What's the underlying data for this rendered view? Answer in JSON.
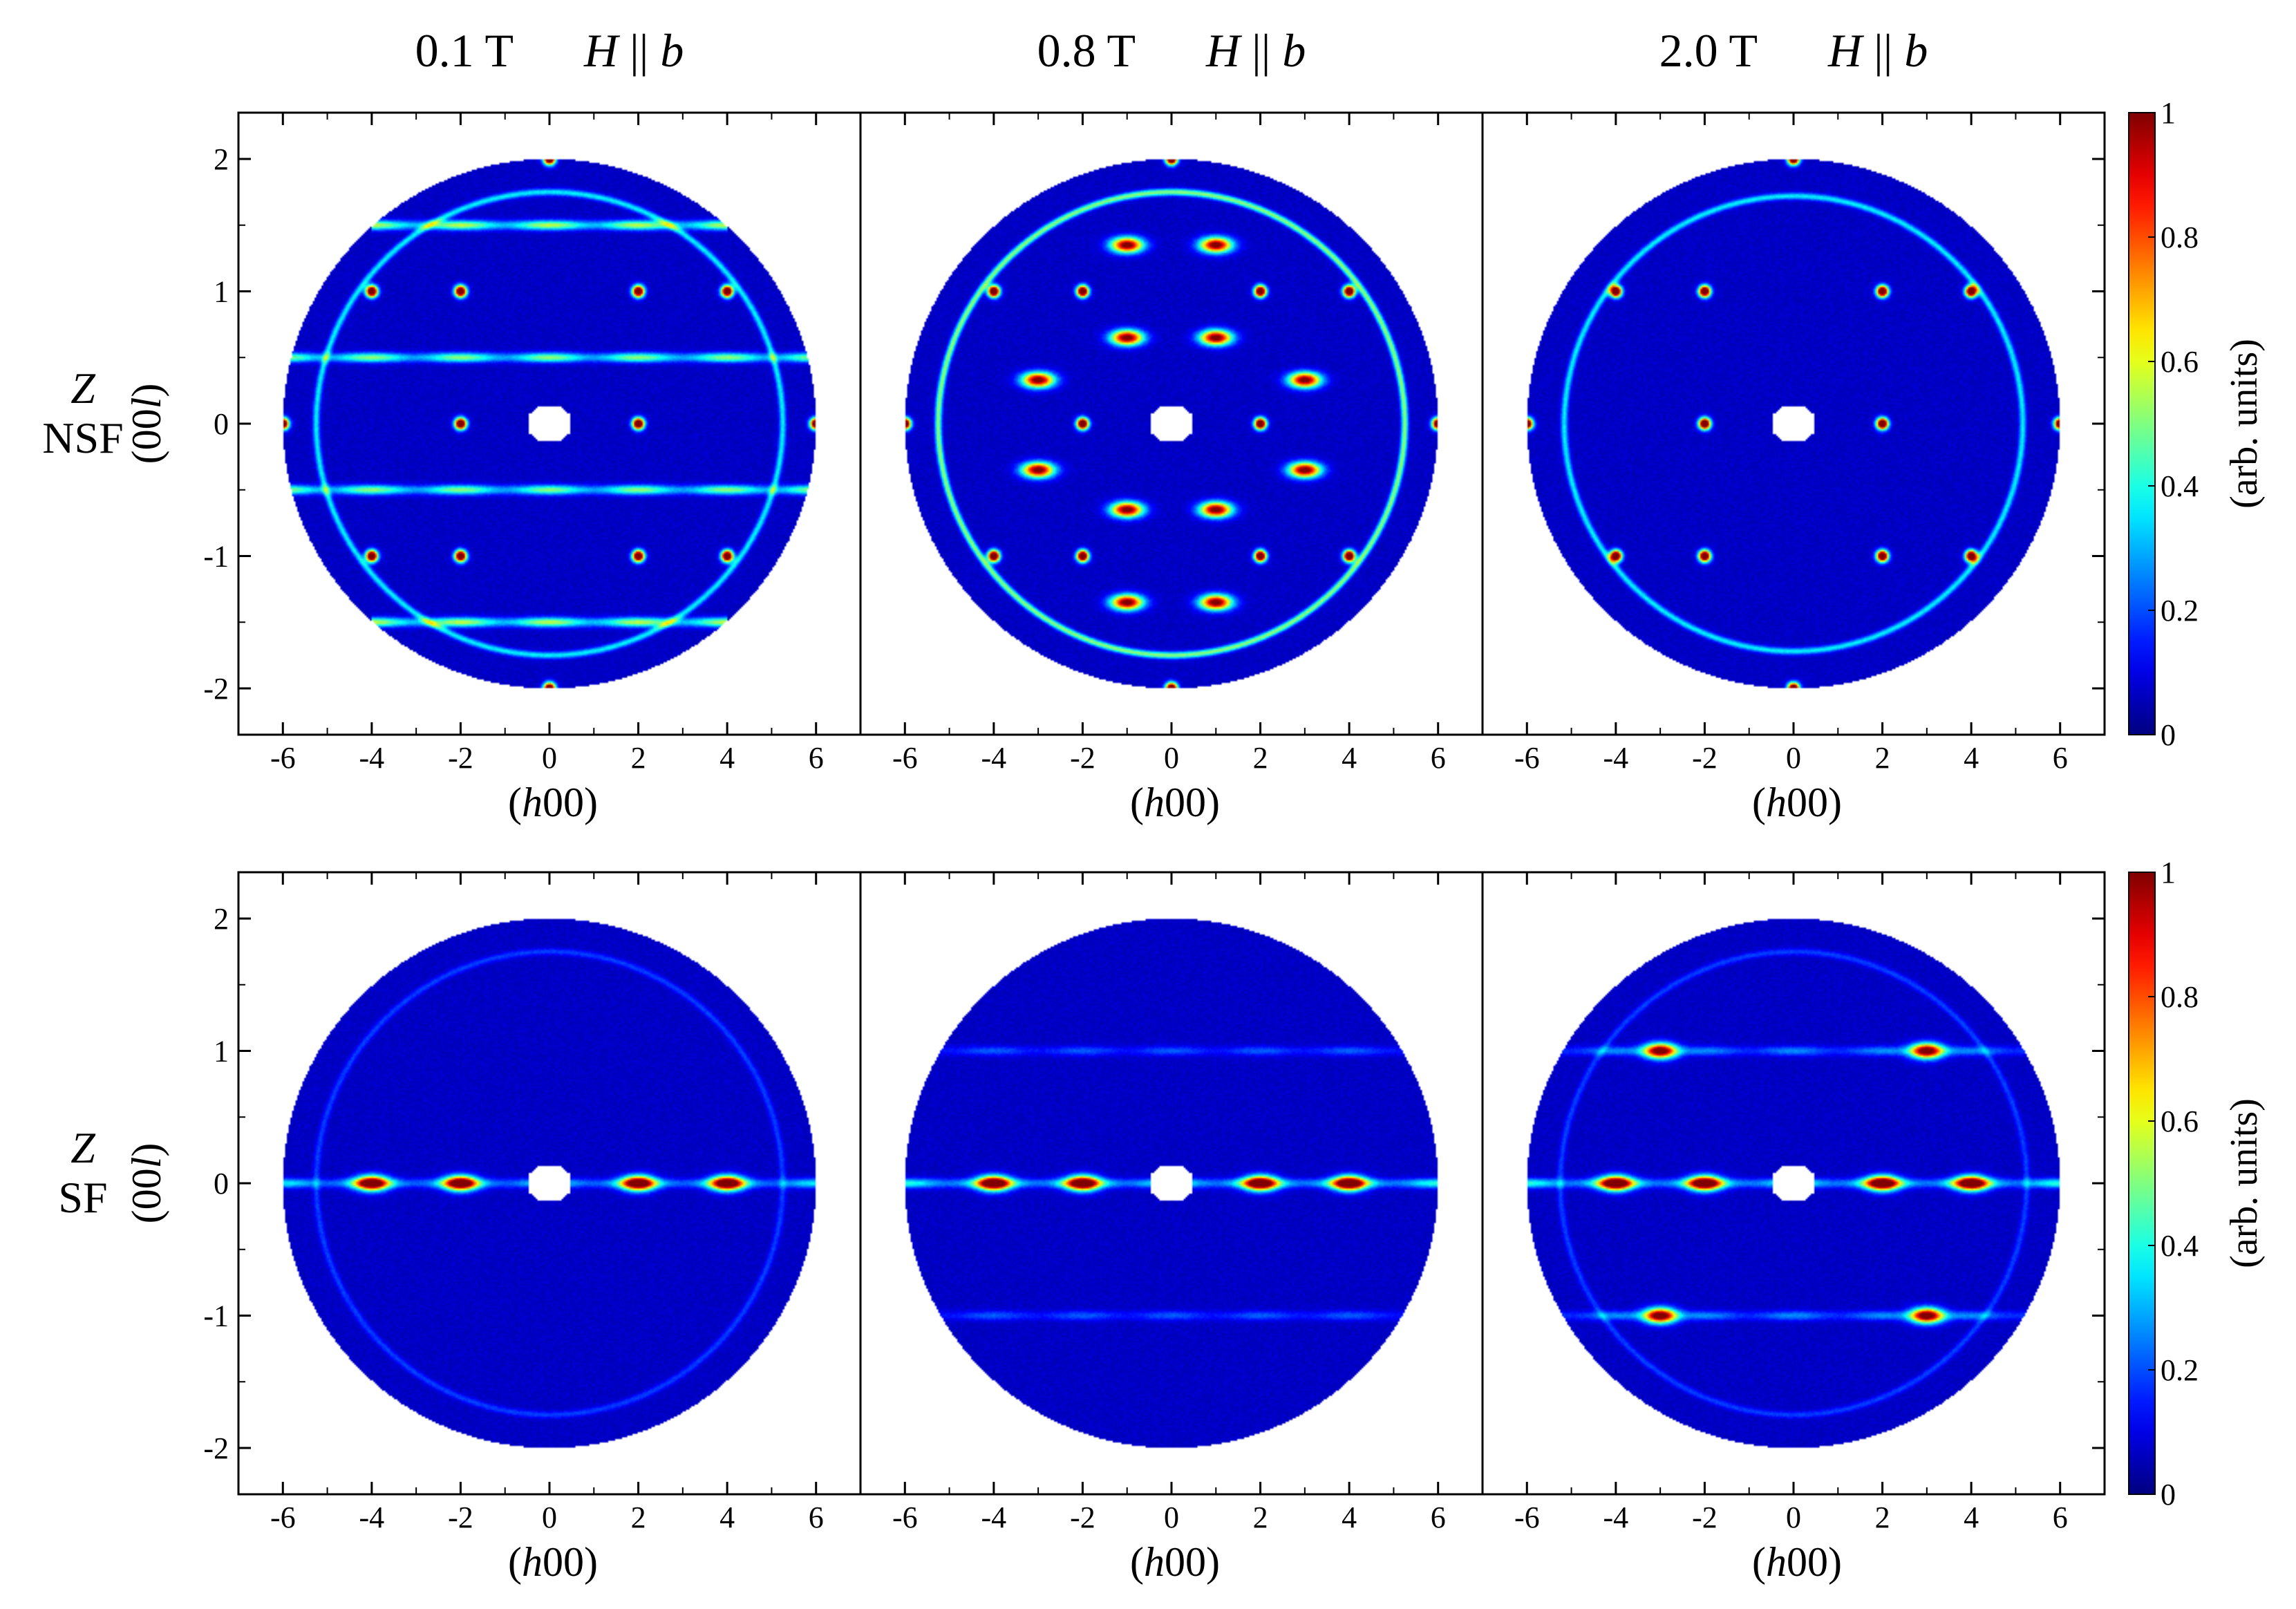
{
  "column_titles": [
    {
      "field": "0.1 T",
      "label": "H || b"
    },
    {
      "field": "0.8 T",
      "label": "H || b"
    },
    {
      "field": "2.0 T",
      "label": "H || b"
    }
  ],
  "row_labels": [
    {
      "line1": "Z",
      "line2": "NSF"
    },
    {
      "line1": "Z",
      "line2": "SF"
    }
  ],
  "x_axis_title": "(h00)",
  "y_axis_title": "(00l)",
  "colorbar": {
    "title": "(arb. units)",
    "ticks": [
      "0",
      "0.2",
      "0.4",
      "0.6",
      "0.8",
      "1"
    ],
    "colormap": "jet",
    "colors": [
      "#00008f",
      "#0000ff",
      "#00ffff",
      "#ffff00",
      "#ff0000",
      "#800000"
    ]
  },
  "chart_data": {
    "type": "heatmap",
    "x_ticks": [
      "-6",
      "-4",
      "-2",
      "0",
      "2",
      "4",
      "6"
    ],
    "y_ticks": [
      "2",
      "1",
      "0",
      "-1",
      "-2"
    ],
    "xlim": [
      -7,
      7
    ],
    "ylim": [
      -2.35,
      2.35
    ],
    "clim": [
      0,
      1
    ],
    "measured_region_radius": 2.0,
    "panels": [
      {
        "row": "Z NSF",
        "field": "0.1 T",
        "bragg_peaks": [
          [
            0,
            2
          ],
          [
            -6,
            0
          ],
          [
            6,
            0
          ],
          [
            -4,
            1
          ],
          [
            -2,
            1
          ],
          [
            2,
            1
          ],
          [
            4,
            1
          ],
          [
            -2,
            0
          ],
          [
            2,
            0
          ],
          [
            -4,
            -1
          ],
          [
            -2,
            -1
          ],
          [
            2,
            -1
          ],
          [
            4,
            -1
          ],
          [
            0,
            -2
          ]
        ],
        "streaks": [
          {
            "l": 1.5,
            "h_min": -4,
            "h_max": 4,
            "intensity": 0.5
          },
          {
            "l": 0.5,
            "h_min": -6,
            "h_max": 6,
            "intensity": 0.45
          },
          {
            "l": -0.5,
            "h_min": -6,
            "h_max": 6,
            "intensity": 0.45
          },
          {
            "l": -1.5,
            "h_min": -4,
            "h_max": 4,
            "intensity": 0.5
          }
        ],
        "ring": {
          "radius": 1.75,
          "intensity": 0.3
        }
      },
      {
        "row": "Z NSF",
        "field": "0.8 T",
        "bragg_peaks": [
          [
            0,
            2
          ],
          [
            -6,
            0
          ],
          [
            6,
            0
          ],
          [
            -4,
            1
          ],
          [
            -2,
            1
          ],
          [
            2,
            1
          ],
          [
            4,
            1
          ],
          [
            -2,
            0
          ],
          [
            2,
            0
          ],
          [
            -4,
            -1
          ],
          [
            -2,
            -1
          ],
          [
            2,
            -1
          ],
          [
            4,
            -1
          ],
          [
            0,
            -2
          ]
        ],
        "spots": [
          [
            -1,
            1.35
          ],
          [
            1,
            1.35
          ],
          [
            -1,
            0.65
          ],
          [
            1,
            0.65
          ],
          [
            -3,
            0.33
          ],
          [
            3,
            0.33
          ],
          [
            -3,
            -0.35
          ],
          [
            3,
            -0.35
          ],
          [
            -1,
            -0.65
          ],
          [
            1,
            -0.65
          ],
          [
            -1,
            -1.35
          ],
          [
            1,
            -1.35
          ]
        ],
        "ring": {
          "radius": 1.75,
          "intensity": 0.45
        }
      },
      {
        "row": "Z NSF",
        "field": "2.0 T",
        "bragg_peaks": [
          [
            0,
            2
          ],
          [
            -6,
            0
          ],
          [
            6,
            0
          ],
          [
            -4,
            1
          ],
          [
            -2,
            1
          ],
          [
            2,
            1
          ],
          [
            4,
            1
          ],
          [
            -2,
            0
          ],
          [
            2,
            0
          ],
          [
            -4,
            -1
          ],
          [
            -2,
            -1
          ],
          [
            2,
            -1
          ],
          [
            4,
            -1
          ],
          [
            0,
            -2
          ]
        ],
        "ring": {
          "radius": 1.72,
          "intensity": 0.3
        }
      },
      {
        "row": "Z SF",
        "field": "0.1 T",
        "spots": [
          [
            -4,
            0
          ],
          [
            -2,
            0
          ],
          [
            2,
            0
          ],
          [
            4,
            0
          ]
        ],
        "streaks": [
          {
            "l": 0,
            "h_min": -6,
            "h_max": 6,
            "intensity": 0.3
          }
        ],
        "ring": {
          "radius": 1.75,
          "intensity": 0.12
        }
      },
      {
        "row": "Z SF",
        "field": "0.8 T",
        "spots": [
          [
            -4,
            0
          ],
          [
            -2,
            0
          ],
          [
            2,
            0
          ],
          [
            4,
            0
          ]
        ],
        "streaks": [
          {
            "l": 0,
            "h_min": -6,
            "h_max": 6,
            "intensity": 0.35
          },
          {
            "l": 1,
            "h_min": -6,
            "h_max": 6,
            "intensity": 0.15
          },
          {
            "l": -1,
            "h_min": -6,
            "h_max": 6,
            "intensity": 0.15
          }
        ]
      },
      {
        "row": "Z SF",
        "field": "2.0 T",
        "spots": [
          [
            -4,
            0
          ],
          [
            -2,
            0
          ],
          [
            2,
            0
          ],
          [
            4,
            0
          ],
          [
            -3,
            1
          ],
          [
            3,
            1
          ],
          [
            -3,
            -1
          ],
          [
            3,
            -1
          ]
        ],
        "streaks": [
          {
            "l": 0,
            "h_min": -6,
            "h_max": 6,
            "intensity": 0.35
          },
          {
            "l": 1,
            "h_min": -6,
            "h_max": 6,
            "intensity": 0.2
          },
          {
            "l": -1,
            "h_min": -6,
            "h_max": 6,
            "intensity": 0.2
          }
        ],
        "ring": {
          "radius": 1.75,
          "intensity": 0.12
        }
      }
    ]
  }
}
